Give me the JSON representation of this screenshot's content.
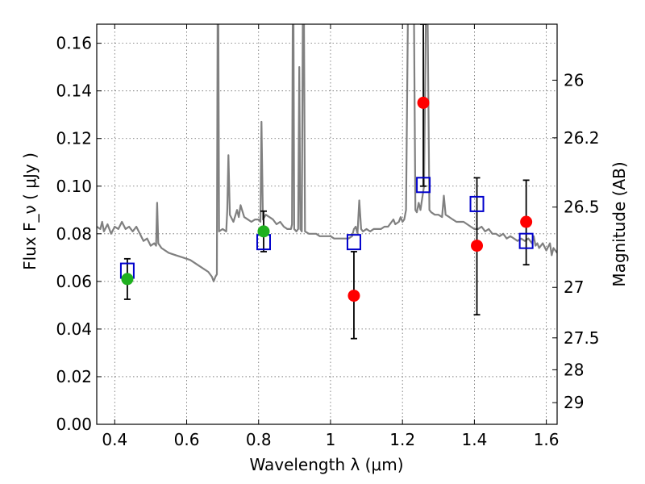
{
  "chart_data": {
    "type": "scatter",
    "xlabel": "Wavelength  λ (μm)",
    "ylabel": "Flux  F_ν  ( μJy )",
    "ylabel_right": "Magnitude (AB)",
    "xlim": [
      0.35,
      1.63
    ],
    "ylim": [
      0.0,
      0.168
    ],
    "grid": true,
    "x_ticks": [
      0.4,
      0.6,
      0.8,
      1.0,
      1.2,
      1.4,
      1.6
    ],
    "x_tick_labels": [
      "0.4",
      "0.6",
      "0.8",
      "1",
      "1.2",
      "1.4",
      "1.6"
    ],
    "y_ticks": [
      0.0,
      0.02,
      0.04,
      0.06,
      0.08,
      0.1,
      0.12,
      0.14,
      0.16
    ],
    "y_tick_labels": [
      "0.00",
      "0.02",
      "0.04",
      "0.06",
      "0.08",
      "0.10",
      "0.12",
      "0.14",
      "0.16"
    ],
    "right_ticks": [
      {
        "label": "26",
        "flux": 0.1445
      },
      {
        "label": "26.2",
        "flux": 0.1203
      },
      {
        "label": "26.5",
        "flux": 0.0912
      },
      {
        "label": "27",
        "flux": 0.0575
      },
      {
        "label": "27.5",
        "flux": 0.0363
      },
      {
        "label": "28",
        "flux": 0.0229
      },
      {
        "label": "29",
        "flux": 0.0091
      }
    ],
    "colors": {
      "model": "#808080",
      "green": "#1fb01f",
      "red": "#ff0000",
      "box": "#0000cc",
      "errorbar": "#000000"
    },
    "model_spectrum": [
      [
        0.35,
        0.083
      ],
      [
        0.36,
        0.082
      ],
      [
        0.365,
        0.085
      ],
      [
        0.37,
        0.081
      ],
      [
        0.38,
        0.084
      ],
      [
        0.39,
        0.08
      ],
      [
        0.4,
        0.083
      ],
      [
        0.41,
        0.082
      ],
      [
        0.42,
        0.085
      ],
      [
        0.43,
        0.082
      ],
      [
        0.44,
        0.083
      ],
      [
        0.45,
        0.081
      ],
      [
        0.46,
        0.083
      ],
      [
        0.47,
        0.08
      ],
      [
        0.48,
        0.077
      ],
      [
        0.49,
        0.078
      ],
      [
        0.5,
        0.075
      ],
      [
        0.51,
        0.076
      ],
      [
        0.515,
        0.075
      ],
      [
        0.518,
        0.093
      ],
      [
        0.521,
        0.076
      ],
      [
        0.53,
        0.074
      ],
      [
        0.55,
        0.072
      ],
      [
        0.57,
        0.071
      ],
      [
        0.59,
        0.07
      ],
      [
        0.61,
        0.069
      ],
      [
        0.63,
        0.067
      ],
      [
        0.65,
        0.065
      ],
      [
        0.66,
        0.064
      ],
      [
        0.67,
        0.062
      ],
      [
        0.675,
        0.06
      ],
      [
        0.68,
        0.062
      ],
      [
        0.684,
        0.063
      ],
      [
        0.686,
        0.17
      ],
      [
        0.688,
        0.17
      ],
      [
        0.69,
        0.081
      ],
      [
        0.7,
        0.082
      ],
      [
        0.71,
        0.081
      ],
      [
        0.713,
        0.09
      ],
      [
        0.716,
        0.113
      ],
      [
        0.72,
        0.088
      ],
      [
        0.73,
        0.085
      ],
      [
        0.74,
        0.09
      ],
      [
        0.745,
        0.087
      ],
      [
        0.75,
        0.092
      ],
      [
        0.76,
        0.087
      ],
      [
        0.77,
        0.086
      ],
      [
        0.78,
        0.085
      ],
      [
        0.79,
        0.086
      ],
      [
        0.8,
        0.086
      ],
      [
        0.805,
        0.085
      ],
      [
        0.808,
        0.127
      ],
      [
        0.812,
        0.086
      ],
      [
        0.82,
        0.088
      ],
      [
        0.83,
        0.087
      ],
      [
        0.84,
        0.086
      ],
      [
        0.85,
        0.084
      ],
      [
        0.86,
        0.085
      ],
      [
        0.87,
        0.083
      ],
      [
        0.88,
        0.082
      ],
      [
        0.89,
        0.082
      ],
      [
        0.893,
        0.084
      ],
      [
        0.895,
        0.17
      ],
      [
        0.897,
        0.17
      ],
      [
        0.899,
        0.082
      ],
      [
        0.905,
        0.081
      ],
      [
        0.91,
        0.082
      ],
      [
        0.913,
        0.15
      ],
      [
        0.916,
        0.082
      ],
      [
        0.92,
        0.081
      ],
      [
        0.923,
        0.17
      ],
      [
        0.926,
        0.17
      ],
      [
        0.929,
        0.081
      ],
      [
        0.94,
        0.08
      ],
      [
        0.95,
        0.08
      ],
      [
        0.96,
        0.08
      ],
      [
        0.97,
        0.079
      ],
      [
        0.98,
        0.079
      ],
      [
        0.99,
        0.079
      ],
      [
        1.0,
        0.079
      ],
      [
        1.01,
        0.078
      ],
      [
        1.02,
        0.078
      ],
      [
        1.03,
        0.078
      ],
      [
        1.04,
        0.078
      ],
      [
        1.05,
        0.078
      ],
      [
        1.06,
        0.079
      ],
      [
        1.065,
        0.082
      ],
      [
        1.07,
        0.083
      ],
      [
        1.075,
        0.08
      ],
      [
        1.08,
        0.094
      ],
      [
        1.085,
        0.082
      ],
      [
        1.09,
        0.081
      ],
      [
        1.1,
        0.082
      ],
      [
        1.11,
        0.081
      ],
      [
        1.12,
        0.082
      ],
      [
        1.13,
        0.082
      ],
      [
        1.14,
        0.082
      ],
      [
        1.15,
        0.083
      ],
      [
        1.16,
        0.083
      ],
      [
        1.17,
        0.085
      ],
      [
        1.175,
        0.086
      ],
      [
        1.18,
        0.084
      ],
      [
        1.19,
        0.085
      ],
      [
        1.195,
        0.087
      ],
      [
        1.2,
        0.085
      ],
      [
        1.205,
        0.086
      ],
      [
        1.21,
        0.09
      ],
      [
        1.215,
        0.17
      ],
      [
        1.22,
        0.17
      ],
      [
        1.228,
        0.17
      ],
      [
        1.232,
        0.17
      ],
      [
        1.236,
        0.09
      ],
      [
        1.24,
        0.089
      ],
      [
        1.245,
        0.093
      ],
      [
        1.25,
        0.09
      ],
      [
        1.26,
        0.1
      ],
      [
        1.265,
        0.17
      ],
      [
        1.27,
        0.17
      ],
      [
        1.275,
        0.09
      ],
      [
        1.28,
        0.089
      ],
      [
        1.29,
        0.088
      ],
      [
        1.3,
        0.088
      ],
      [
        1.31,
        0.087
      ],
      [
        1.315,
        0.096
      ],
      [
        1.32,
        0.088
      ],
      [
        1.33,
        0.087
      ],
      [
        1.34,
        0.086
      ],
      [
        1.35,
        0.085
      ],
      [
        1.37,
        0.085
      ],
      [
        1.38,
        0.084
      ],
      [
        1.39,
        0.083
      ],
      [
        1.4,
        0.082
      ],
      [
        1.41,
        0.082
      ],
      [
        1.42,
        0.083
      ],
      [
        1.43,
        0.081
      ],
      [
        1.44,
        0.082
      ],
      [
        1.45,
        0.08
      ],
      [
        1.46,
        0.08
      ],
      [
        1.47,
        0.079
      ],
      [
        1.48,
        0.08
      ],
      [
        1.49,
        0.078
      ],
      [
        1.5,
        0.079
      ],
      [
        1.51,
        0.078
      ],
      [
        1.52,
        0.077
      ],
      [
        1.53,
        0.078
      ],
      [
        1.54,
        0.077
      ],
      [
        1.55,
        0.078
      ],
      [
        1.56,
        0.076
      ],
      [
        1.565,
        0.079
      ],
      [
        1.57,
        0.075
      ],
      [
        1.575,
        0.076
      ],
      [
        1.58,
        0.074
      ],
      [
        1.59,
        0.076
      ],
      [
        1.6,
        0.073
      ],
      [
        1.61,
        0.076
      ],
      [
        1.615,
        0.071
      ],
      [
        1.62,
        0.074
      ],
      [
        1.63,
        0.072
      ]
    ],
    "points_green": [
      {
        "x": 0.435,
        "y": 0.061,
        "yerr": [
          0.0525,
          0.0695
        ]
      },
      {
        "x": 0.814,
        "y": 0.081,
        "yerr": [
          0.0725,
          0.0895
        ]
      }
    ],
    "points_red": [
      {
        "x": 1.065,
        "y": 0.054,
        "yerr": [
          0.036,
          0.0725
        ]
      },
      {
        "x": 1.258,
        "y": 0.135,
        "yerr": [
          0.1,
          0.168
        ]
      },
      {
        "x": 1.407,
        "y": 0.075,
        "yerr": [
          0.046,
          0.1035
        ]
      },
      {
        "x": 1.544,
        "y": 0.085,
        "yerr": [
          0.067,
          0.1025
        ]
      }
    ],
    "model_photometry_boxes": [
      {
        "x": 0.435,
        "y": 0.0645
      },
      {
        "x": 0.814,
        "y": 0.0765
      },
      {
        "x": 1.065,
        "y": 0.0765
      },
      {
        "x": 1.258,
        "y": 0.1005
      },
      {
        "x": 1.407,
        "y": 0.0925
      },
      {
        "x": 1.544,
        "y": 0.077
      }
    ]
  }
}
